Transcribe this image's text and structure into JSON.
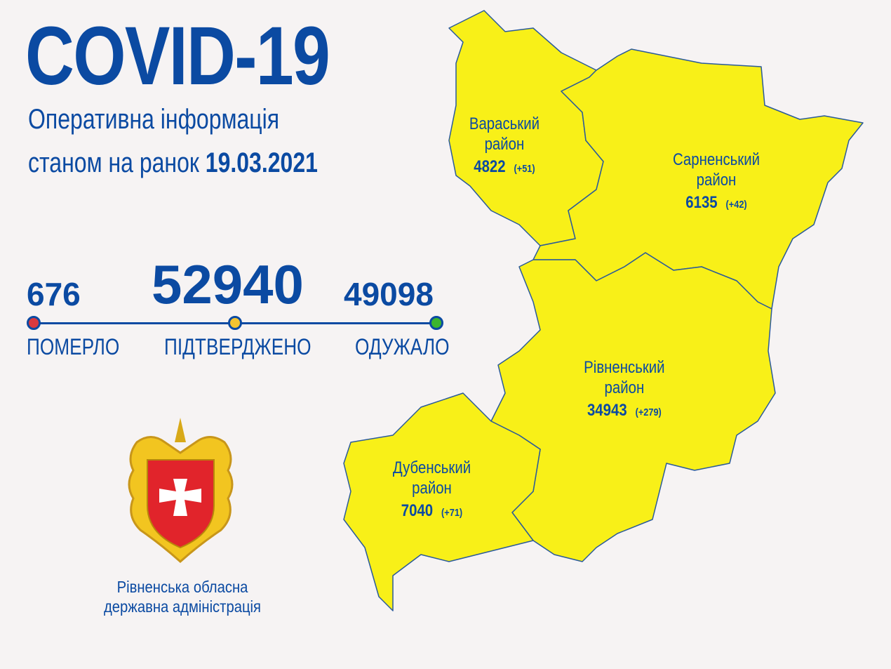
{
  "header": {
    "title": "COVID-19",
    "subtitle_line1": "Оперативна інформація",
    "subtitle_line2_prefix": "станом на ранок",
    "date": "19.03.2021"
  },
  "stats": {
    "died": {
      "value": "676",
      "label": "ПОМЕРЛО",
      "color": "#d9393f"
    },
    "confirmed": {
      "value": "52940",
      "label": "ПІДТВЕРДЖЕНО",
      "color": "#f4c430"
    },
    "recovered": {
      "value": "49098",
      "label": "ОДУЖАЛО",
      "color": "#3cb52e"
    }
  },
  "districts": [
    {
      "name_line1": "Вараський",
      "name_line2": "район",
      "total": "4822",
      "delta": "(+51)"
    },
    {
      "name_line1": "Сарненський",
      "name_line2": "район",
      "total": "6135",
      "delta": "(+42)"
    },
    {
      "name_line1": "Рівненський",
      "name_line2": "район",
      "total": "34943",
      "delta": "(+279)"
    },
    {
      "name_line1": "Дубенський",
      "name_line2": "район",
      "total": "7040",
      "delta": "(+71)"
    }
  ],
  "map_fill": "#f8f018",
  "footer": {
    "org_line1": "Рівненська обласна",
    "org_line2": "державна адміністрація"
  }
}
